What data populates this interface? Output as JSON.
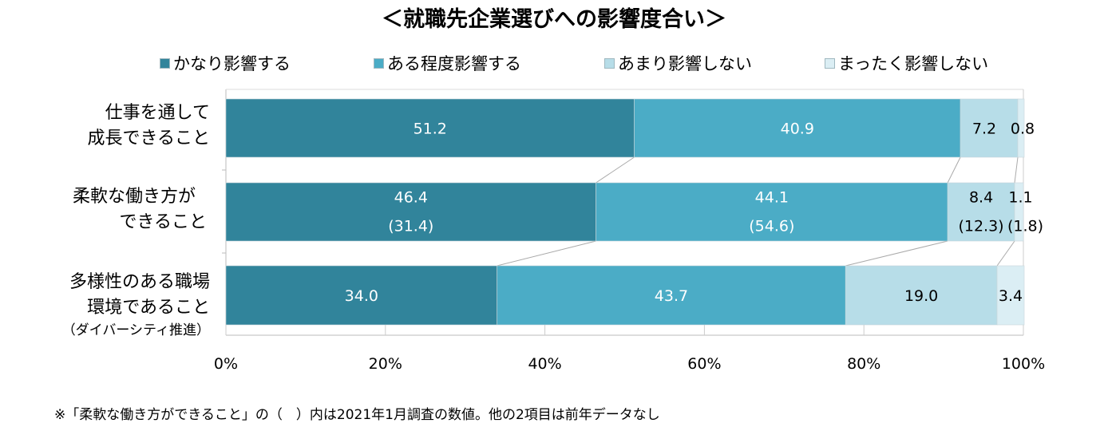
{
  "title": "＜就職先企業選びへの影響度合い＞",
  "footnote": "※「柔軟な働き方ができること」の（　）内は2021年1月調査の数値。他の2項目は前年データなし",
  "chart_data": {
    "type": "bar",
    "orientation": "horizontal-stacked-100",
    "xlim": [
      0,
      100
    ],
    "x_ticks": [
      "0%",
      "20%",
      "40%",
      "60%",
      "80%",
      "100%"
    ],
    "legend_position": "top",
    "series": [
      {
        "name": "かなり影響する",
        "color": "#31849b",
        "values": [
          51.2,
          46.4,
          34.0
        ],
        "prev": [
          null,
          31.4,
          null
        ]
      },
      {
        "name": "ある程度影響する",
        "color": "#4bacc6",
        "values": [
          40.9,
          44.1,
          43.7
        ],
        "prev": [
          null,
          54.6,
          null
        ]
      },
      {
        "name": "あまり影響しない",
        "color": "#b7dde8",
        "values": [
          7.2,
          8.4,
          19.0
        ],
        "prev": [
          null,
          12.3,
          null
        ]
      },
      {
        "name": "まったく影響しない",
        "color": "#dbeef4",
        "values": [
          0.8,
          1.1,
          3.4
        ],
        "prev": [
          null,
          1.8,
          null
        ]
      }
    ],
    "categories": [
      {
        "lines": [
          "仕事を通して",
          "成長できること"
        ],
        "sub": ""
      },
      {
        "lines": [
          "柔軟な働き方が",
          "できること"
        ],
        "sub": ""
      },
      {
        "lines": [
          "多様性のある職場",
          "環境であること"
        ],
        "sub": "（ダイバーシティ推進）"
      }
    ]
  }
}
